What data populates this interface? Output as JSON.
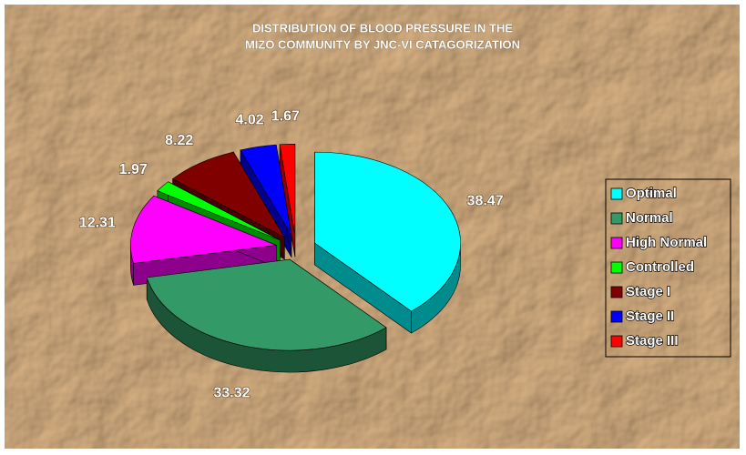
{
  "chart_data": {
    "type": "pie3d",
    "title": [
      "DISTRIBUTION OF BLOOD PRESSURE IN THE",
      "MIZO COMMUNITY BY JNC-VI CATAGORIZATION"
    ],
    "categories": [
      "Optimal",
      "Normal",
      "High Normal",
      "Controlled",
      "Stage I",
      "Stage II",
      "Stage III"
    ],
    "values": [
      38.47,
      33.32,
      12.31,
      1.97,
      8.22,
      4.02,
      1.67
    ],
    "colors": [
      "#00ffff",
      "#339966",
      "#ff00ff",
      "#00ff00",
      "#800000",
      "#0000ff",
      "#ff0000"
    ],
    "legend": "right"
  }
}
